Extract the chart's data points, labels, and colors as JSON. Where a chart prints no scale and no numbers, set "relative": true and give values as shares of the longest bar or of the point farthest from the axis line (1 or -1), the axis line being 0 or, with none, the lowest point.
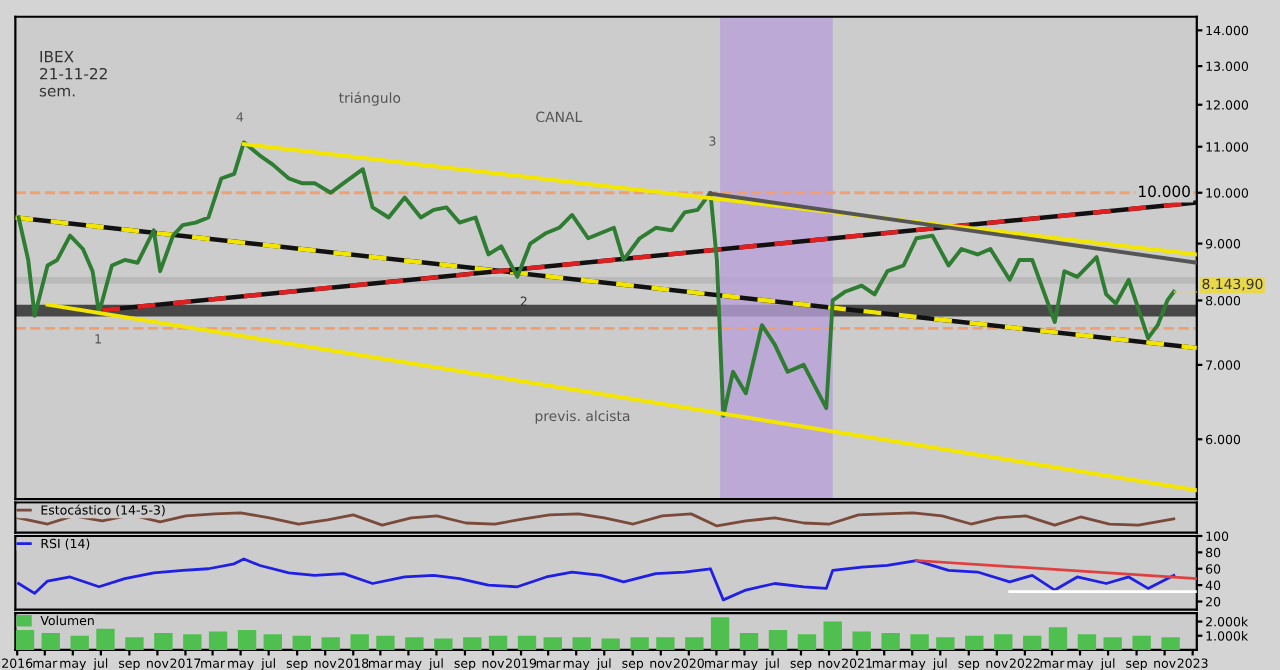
{
  "chart_data": [
    {
      "type": "line",
      "log": true,
      "tick_labels": "y",
      "grid": false,
      "legend": false,
      "xlim": [
        "2015-12-28",
        "2023-01-10"
      ],
      "ylim": [
        5300,
        14400
      ],
      "yticks": [
        {
          "value": 6000,
          "label": "6.000"
        },
        {
          "value": 7000,
          "label": "7.000"
        },
        {
          "value": 8000,
          "label": "8.000"
        },
        {
          "value": 9000,
          "label": "9.000"
        },
        {
          "value": 10000,
          "label": "10.000"
        },
        {
          "value": 11000,
          "label": "11.000"
        },
        {
          "value": 12000,
          "label": "12.000"
        },
        {
          "value": 13000,
          "label": "13.000"
        },
        {
          "value": 14000,
          "label": "14.000"
        }
      ],
      "annotations": [
        "IBEX",
        "21-11-22",
        "sem.",
        "triángulo",
        "CANAL",
        "4",
        "3",
        "1",
        {
          "text": "2",
          "x": "2019-01-07",
          "y": 7970
        },
        "previs. alcista",
        {
          "text": "8.143,90",
          "x": "2022-11-21",
          "y": 8143.9
        }
      ],
      "series": [
        {
          "type": "line",
          "color": "#2f7d32",
          "x": [
            "2016-01-04",
            "2016-01-25",
            "2016-02-08",
            "2016-03-07",
            "2016-03-28",
            "2016-04-25",
            "2016-05-23",
            "2016-06-13",
            "2016-06-27",
            "2016-07-25",
            "2016-08-22",
            "2016-09-19",
            "2016-10-24",
            "2016-11-07",
            "2016-12-05",
            "2016-12-26",
            "2017-01-23",
            "2017-02-20",
            "2017-03-20",
            "2017-04-17",
            "2017-05-08",
            "2017-06-12",
            "2017-07-10",
            "2017-08-14",
            "2017-09-11",
            "2017-10-09",
            "2017-11-13",
            "2017-12-11",
            "2018-01-22",
            "2018-02-12",
            "2018-03-19",
            "2018-04-23",
            "2018-05-28",
            "2018-06-25",
            "2018-07-23",
            "2018-08-20",
            "2018-09-24",
            "2018-10-22",
            "2018-11-19",
            "2018-12-24",
            "2019-01-21",
            "2019-02-25",
            "2019-03-25",
            "2019-04-22",
            "2019-05-27",
            "2019-06-24",
            "2019-07-22",
            "2019-08-12",
            "2019-09-16",
            "2019-10-21",
            "2019-11-25",
            "2019-12-23",
            "2020-01-20",
            "2020-02-17",
            "2020-03-02",
            "2020-03-16",
            "2020-04-06",
            "2020-05-04",
            "2020-06-08",
            "2020-07-06",
            "2020-08-03",
            "2020-09-07",
            "2020-10-26",
            "2020-11-09",
            "2020-12-07",
            "2021-01-11",
            "2021-02-08",
            "2021-03-08",
            "2021-04-12",
            "2021-05-10",
            "2021-06-14",
            "2021-07-19",
            "2021-08-16",
            "2021-09-20",
            "2021-10-18",
            "2021-11-29",
            "2021-12-20",
            "2022-01-17",
            "2022-03-07",
            "2022-03-28",
            "2022-04-25",
            "2022-06-06",
            "2022-06-27",
            "2022-07-18",
            "2022-08-15",
            "2022-09-26",
            "2022-10-17",
            "2022-11-07",
            "2022-11-21"
          ],
          "values": [
            9500,
            8700,
            7750,
            8600,
            8700,
            9150,
            8900,
            8500,
            7800,
            8600,
            8700,
            8650,
            9250,
            8500,
            9150,
            9350,
            9400,
            9500,
            10300,
            10400,
            11100,
            10800,
            10600,
            10300,
            10200,
            10200,
            10000,
            10200,
            10500,
            9700,
            9500,
            9900,
            9500,
            9650,
            9700,
            9400,
            9500,
            8800,
            8950,
            8400,
            9000,
            9200,
            9300,
            9550,
            9100,
            9200,
            9300,
            8700,
            9100,
            9300,
            9250,
            9600,
            9650,
            10000,
            8700,
            6300,
            6900,
            6600,
            7600,
            7300,
            6900,
            7000,
            6400,
            8000,
            8150,
            8250,
            8100,
            8500,
            8600,
            9100,
            9150,
            8600,
            8900,
            8800,
            8900,
            8350,
            8700,
            8700,
            7650,
            8500,
            8400,
            8750,
            8100,
            7950,
            8350,
            7400,
            7600,
            8000,
            8143.9
          ]
        },
        {
          "type": "line",
          "color": "#f2e600",
          "x": [
            "2017-05-08",
            "2023-01-10"
          ],
          "values": [
            11060,
            8800
          ]
        },
        {
          "type": "line",
          "color": "#f2e600",
          "line_style": "dashed",
          "x": [
            "2015-12-28",
            "2023-01-10"
          ],
          "values": [
            9500,
            7250
          ]
        },
        {
          "type": "line",
          "color": "#f2e600",
          "x": [
            "2016-03-07",
            "2023-01-10"
          ],
          "values": [
            7930,
            5400
          ]
        },
        {
          "type": "line",
          "color": "#e02020",
          "line_style": "dashed",
          "x": [
            "2016-07-04",
            "2023-01-10"
          ],
          "values": [
            7840,
            9800
          ]
        },
        {
          "type": "line",
          "color": "#555555",
          "x": [
            "2020-02-17",
            "2023-01-10"
          ],
          "values": [
            9980,
            8650
          ]
        }
      ],
      "ref_lines": [
        {
          "axis": "y",
          "value": 10000,
          "label": "10.000",
          "color": "#f0a070",
          "line_style": "dashed"
        },
        {
          "axis": "y",
          "value": 7550,
          "color": "#f0a070",
          "line_style": "dashed"
        }
      ],
      "bands": [
        {
          "axis": "y",
          "from": 7740,
          "to": 7930,
          "color": "#3a3a3a"
        },
        {
          "axis": "y",
          "from": 8280,
          "to": 8400,
          "color": "#b8b8b8"
        },
        {
          "axis": "x",
          "from": "2020-03-09",
          "to": "2020-11-09",
          "color": "#b8a0d8"
        }
      ]
    },
    {
      "type": "line",
      "relative": true,
      "tick_labels": false,
      "legend": "top left",
      "xlim": [
        "2015-12-28",
        "2023-01-10"
      ],
      "series": [
        {
          "name": "Estocástico (14-5-3)",
          "color": "#7a4a3a",
          "x": [
            "2016-01-04",
            "2016-03-07",
            "2016-05-02",
            "2016-07-04",
            "2016-09-05",
            "2016-11-07",
            "2017-01-02",
            "2017-03-06",
            "2017-05-01",
            "2017-07-03",
            "2017-09-04",
            "2017-11-06",
            "2018-01-01",
            "2018-03-05",
            "2018-05-07",
            "2018-07-02",
            "2018-09-03",
            "2018-11-05",
            "2019-01-07",
            "2019-03-04",
            "2019-05-06",
            "2019-07-01",
            "2019-09-02",
            "2019-11-04",
            "2020-01-06",
            "2020-03-02",
            "2020-05-04",
            "2020-07-06",
            "2020-09-07",
            "2020-11-02",
            "2021-01-04",
            "2021-03-01",
            "2021-05-03",
            "2021-07-05",
            "2021-09-06",
            "2021-11-01",
            "2022-01-03",
            "2022-03-07",
            "2022-05-02",
            "2022-07-04",
            "2022-09-05",
            "2022-11-21"
          ],
          "values": [
            0.71,
            0.35,
            0.82,
            0.53,
            0.88,
            0.47,
            0.82,
            0.94,
            1,
            0.71,
            0.35,
            0.59,
            0.88,
            0.29,
            0.71,
            0.82,
            0.41,
            0.35,
            0.65,
            0.88,
            0.94,
            0.71,
            0.35,
            0.82,
            0.94,
            0.24,
            0.53,
            0.71,
            0.41,
            0.35,
            0.88,
            0.94,
            1,
            0.82,
            0.35,
            0.71,
            0.82,
            0.29,
            0.76,
            0.35,
            0.29,
            0.65
          ]
        }
      ]
    },
    {
      "type": "line",
      "tick_labels": "y",
      "legend": "top left",
      "xlim": [
        "2015-12-28",
        "2023-01-10"
      ],
      "ylim": [
        10,
        100
      ],
      "yticks": [
        20,
        40,
        60,
        80,
        100
      ],
      "series": [
        {
          "name": "RSI (14)",
          "color": "#1f1fe6",
          "x": [
            "2016-01-04",
            "2016-02-08",
            "2016-03-07",
            "2016-04-25",
            "2016-06-27",
            "2016-08-22",
            "2016-10-24",
            "2016-12-26",
            "2017-02-20",
            "2017-04-17",
            "2017-05-08",
            "2017-06-12",
            "2017-08-14",
            "2017-10-09",
            "2017-12-11",
            "2018-02-12",
            "2018-04-23",
            "2018-06-25",
            "2018-08-20",
            "2018-10-22",
            "2018-12-24",
            "2019-02-25",
            "2019-04-22",
            "2019-06-24",
            "2019-08-12",
            "2019-10-21",
            "2019-12-23",
            "2020-02-17",
            "2020-03-16",
            "2020-05-04",
            "2020-07-06",
            "2020-09-07",
            "2020-10-26",
            "2020-11-09",
            "2021-01-11",
            "2021-03-08",
            "2021-05-10",
            "2021-07-19",
            "2021-09-20",
            "2021-11-29",
            "2022-01-17",
            "2022-03-07",
            "2022-04-25",
            "2022-06-27",
            "2022-08-15",
            "2022-09-26",
            "2022-11-21"
          ],
          "values": [
            42,
            30,
            45,
            50,
            38,
            48,
            55,
            58,
            60,
            66,
            72,
            64,
            55,
            52,
            54,
            42,
            50,
            52,
            48,
            40,
            38,
            50,
            56,
            52,
            44,
            54,
            56,
            60,
            22,
            34,
            42,
            38,
            36,
            58,
            62,
            64,
            70,
            58,
            56,
            44,
            52,
            34,
            50,
            42,
            50,
            36,
            52
          ]
        },
        {
          "type": "line",
          "color": "#e04040",
          "x": [
            "2021-05-10",
            "2023-01-10"
          ],
          "values": [
            70,
            48
          ]
        },
        {
          "type": "line",
          "color": "#ffffff",
          "x": [
            "2021-11-29",
            "2023-01-10"
          ],
          "values": [
            32,
            32
          ]
        }
      ]
    },
    {
      "type": "bar",
      "tick_labels": true,
      "legend": "top left",
      "xlim": [
        "2015-12-28",
        "2023-01-10"
      ],
      "ylim": [
        0,
        2600
      ],
      "yticks": [
        {
          "value": 1000,
          "label": "1.000k"
        },
        {
          "value": 2000,
          "label": "2.000k"
        }
      ],
      "xticks": [
        {
          "value": "2016-01-01",
          "label": "2016"
        },
        {
          "value": "2016-03-01",
          "label": "mar"
        },
        {
          "value": "2016-05-01",
          "label": "may"
        },
        {
          "value": "2016-07-01",
          "label": "jul"
        },
        {
          "value": "2016-09-01",
          "label": "sep"
        },
        {
          "value": "2016-11-01",
          "label": "nov"
        },
        {
          "value": "2017-01-01",
          "label": "2017"
        },
        {
          "value": "2017-03-01",
          "label": "mar"
        },
        {
          "value": "2017-05-01",
          "label": "may"
        },
        {
          "value": "2017-07-01",
          "label": "jul"
        },
        {
          "value": "2017-09-01",
          "label": "sep"
        },
        {
          "value": "2017-11-01",
          "label": "nov"
        },
        {
          "value": "2018-01-01",
          "label": "2018"
        },
        {
          "value": "2018-03-01",
          "label": "mar"
        },
        {
          "value": "2018-05-01",
          "label": "may"
        },
        {
          "value": "2018-07-01",
          "label": "jul"
        },
        {
          "value": "2018-09-01",
          "label": "sep"
        },
        {
          "value": "2018-11-01",
          "label": "nov"
        },
        {
          "value": "2019-01-01",
          "label": "2019"
        },
        {
          "value": "2019-03-01",
          "label": "mar"
        },
        {
          "value": "2019-05-01",
          "label": "may"
        },
        {
          "value": "2019-07-01",
          "label": "jul"
        },
        {
          "value": "2019-09-01",
          "label": "sep"
        },
        {
          "value": "2019-11-01",
          "label": "nov"
        },
        {
          "value": "2020-01-01",
          "label": "2020"
        },
        {
          "value": "2020-03-01",
          "label": "mar"
        },
        {
          "value": "2020-05-01",
          "label": "may"
        },
        {
          "value": "2020-07-01",
          "label": "jul"
        },
        {
          "value": "2020-09-01",
          "label": "sep"
        },
        {
          "value": "2020-11-01",
          "label": "nov"
        },
        {
          "value": "2021-01-01",
          "label": "2021"
        },
        {
          "value": "2021-03-01",
          "label": "mar"
        },
        {
          "value": "2021-05-01",
          "label": "may"
        },
        {
          "value": "2021-07-01",
          "label": "jul"
        },
        {
          "value": "2021-09-01",
          "label": "sep"
        },
        {
          "value": "2021-11-01",
          "label": "nov"
        },
        {
          "value": "2022-01-01",
          "label": "2022"
        },
        {
          "value": "2022-03-01",
          "label": "mar"
        },
        {
          "value": "2022-05-01",
          "label": "may"
        },
        {
          "value": "2022-07-01",
          "label": "jul"
        },
        {
          "value": "2022-09-01",
          "label": "sep"
        },
        {
          "value": "2022-11-01",
          "label": "nov"
        },
        {
          "value": "2023-01-01",
          "label": "2023"
        }
      ],
      "series": [
        {
          "name": "Volumen",
          "color": "#4fc04f",
          "x": [
            "2016-01-18",
            "2016-03-14",
            "2016-05-16",
            "2016-07-11",
            "2016-09-12",
            "2016-11-14",
            "2017-01-16",
            "2017-03-13",
            "2017-05-15",
            "2017-07-10",
            "2017-09-11",
            "2017-11-13",
            "2018-01-15",
            "2018-03-12",
            "2018-05-14",
            "2018-07-16",
            "2018-09-17",
            "2018-11-12",
            "2019-01-14",
            "2019-03-11",
            "2019-05-13",
            "2019-07-15",
            "2019-09-16",
            "2019-11-11",
            "2020-01-13",
            "2020-03-09",
            "2020-05-11",
            "2020-07-13",
            "2020-09-14",
            "2020-11-09",
            "2021-01-11",
            "2021-03-15",
            "2021-05-17",
            "2021-07-12",
            "2021-09-13",
            "2021-11-15",
            "2022-01-17",
            "2022-03-14",
            "2022-05-16",
            "2022-07-11",
            "2022-09-12",
            "2022-11-14"
          ],
          "values": [
            1400,
            1200,
            1000,
            1500,
            900,
            1200,
            1100,
            1300,
            1400,
            1100,
            1000,
            900,
            1100,
            1000,
            900,
            800,
            900,
            1000,
            1000,
            900,
            900,
            800,
            900,
            900,
            900,
            2300,
            1200,
            1400,
            1100,
            2000,
            1300,
            1200,
            1100,
            900,
            1000,
            1100,
            1000,
            1600,
            1100,
            900,
            1000,
            900
          ]
        }
      ]
    }
  ]
}
